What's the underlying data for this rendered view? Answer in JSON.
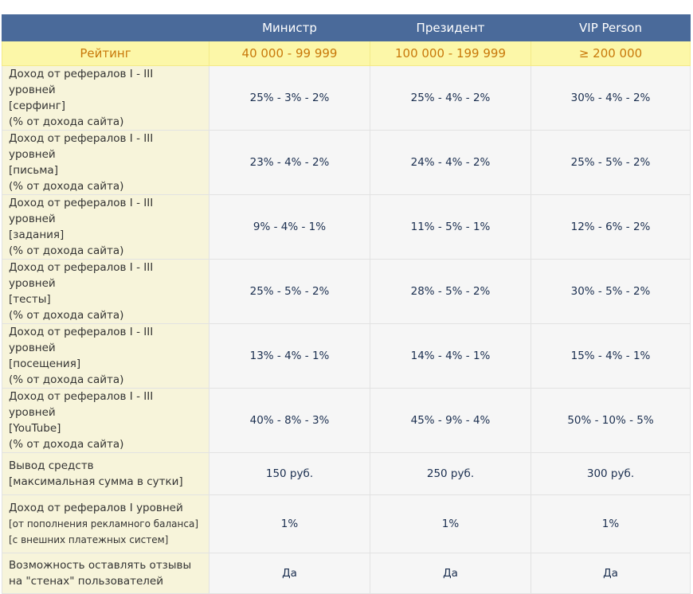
{
  "header": {
    "empty": "",
    "columns": [
      "Министр",
      "Президент",
      "VIP Person"
    ]
  },
  "rating": {
    "label": "Рейтинг",
    "values": [
      "40 000 - 99 999",
      "100 000 - 199 999",
      "≥ 200 000"
    ]
  },
  "rows": [
    {
      "lines": [
        "Доход от рефералов I - III уровней",
        "[серфинг]",
        "(% от дохода сайта)"
      ],
      "values": [
        "25% - 3% - 2%",
        "25% - 4% - 2%",
        "30% - 4% - 2%"
      ]
    },
    {
      "lines": [
        "Доход от рефералов I - III уровней",
        "[письма]",
        "(% от дохода сайта)"
      ],
      "values": [
        "23% - 4% - 2%",
        "24% - 4% - 2%",
        "25% - 5% - 2%"
      ]
    },
    {
      "lines": [
        "Доход от рефералов I - III уровней",
        "[задания]",
        "(% от дохода сайта)"
      ],
      "values": [
        "9% - 4% - 1%",
        "11% - 5% - 1%",
        "12% - 6% - 2%"
      ]
    },
    {
      "lines": [
        "Доход от рефералов I - III уровней",
        "[тесты]",
        "(% от дохода сайта)"
      ],
      "values": [
        "25% - 5% - 2%",
        "28% - 5% - 2%",
        "30% - 5% - 2%"
      ]
    },
    {
      "lines": [
        "Доход от рефералов I - III уровней",
        "[посещения]",
        "(% от дохода сайта)"
      ],
      "values": [
        "13% - 4% - 1%",
        "14% - 4% - 1%",
        "15% - 4% - 1%"
      ]
    },
    {
      "lines": [
        "Доход от рефералов I - III уровней",
        "[YouTube]",
        "(% от дохода сайта)"
      ],
      "values": [
        "40% - 8% - 3%",
        "45% - 9% - 4%",
        "50% - 10% - 5%"
      ]
    },
    {
      "lines": [
        "Вывод средств",
        "[максимальная сумма в сутки]"
      ],
      "values": [
        "150 руб.",
        "250 руб.",
        "300 руб."
      ]
    },
    {
      "lines": [
        "Доход от рефералов I уровней",
        "[от пополнения рекламного баланса]",
        "[с внешних платежных систем]"
      ],
      "values": [
        "1%",
        "1%",
        "1%"
      ]
    },
    {
      "lines": [
        "Возможность оставлять отзывы",
        "на \"стенах\" пользователей"
      ],
      "values": [
        "Да",
        "Да",
        "Да"
      ]
    }
  ]
}
